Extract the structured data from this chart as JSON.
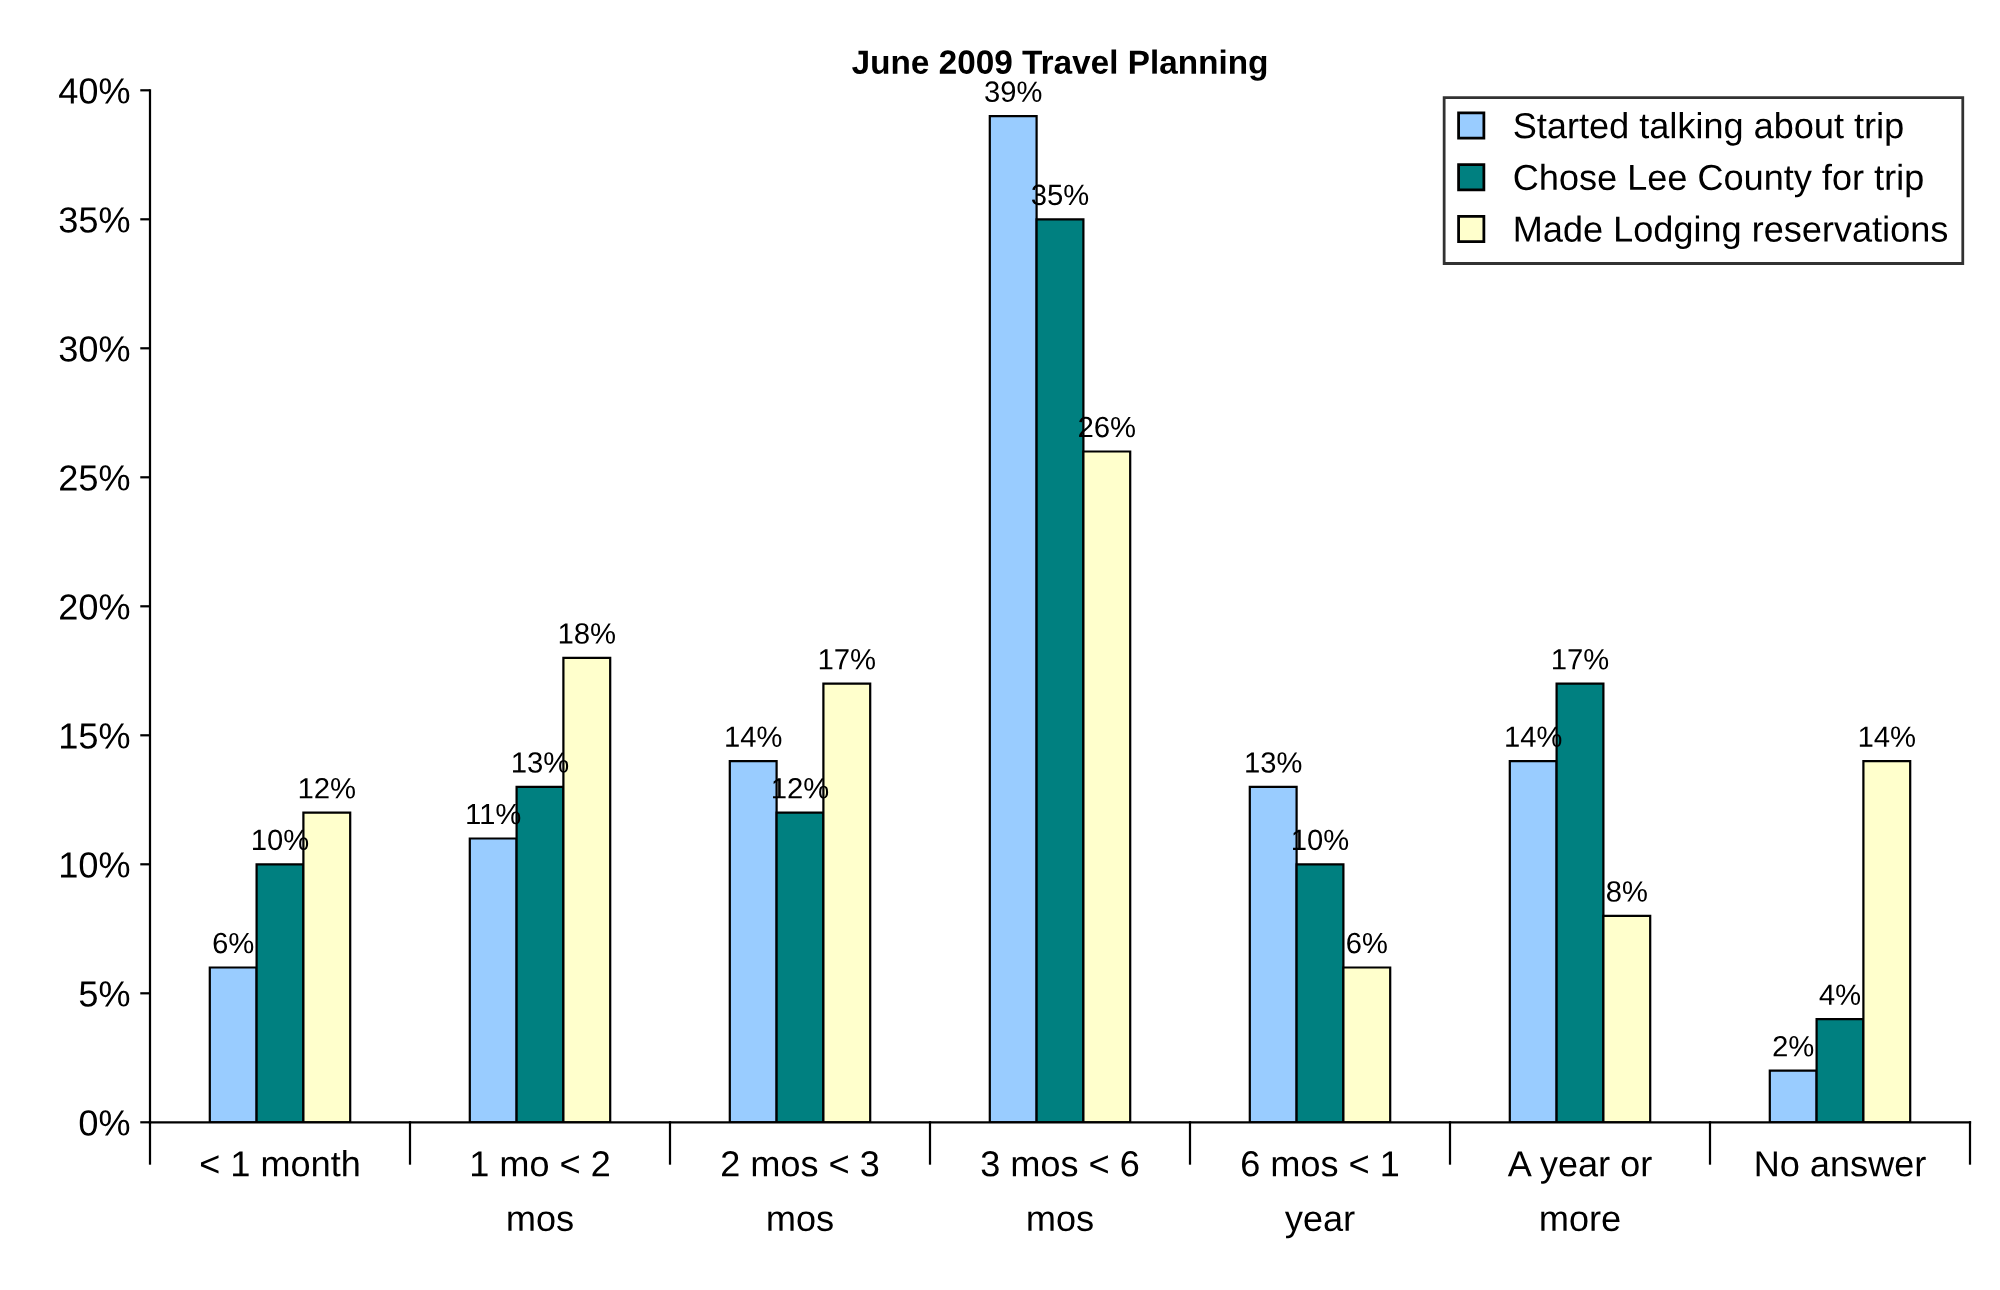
{
  "chart_data": {
    "type": "bar",
    "title": "June 2009 Travel Planning",
    "categories": [
      "< 1 month",
      "1 mo < 2\nmos",
      "2 mos < 3\nmos",
      "3 mos < 6\nmos",
      "6 mos < 1\nyear",
      "A year or\nmore",
      "No answer"
    ],
    "series": [
      {
        "name": "Started talking about trip",
        "color": "#99ccff",
        "values": [
          6,
          11,
          14,
          39,
          13,
          14,
          2
        ],
        "value_labels": [
          "6%",
          "11%",
          "14%",
          "39%",
          "13%",
          "14%",
          "2%"
        ]
      },
      {
        "name": "Chose Lee County for trip",
        "color": "#008080",
        "values": [
          10,
          13,
          12,
          35,
          10,
          17,
          4
        ],
        "value_labels": [
          "10%",
          "13%",
          "12%",
          "35%",
          "10%",
          "17%",
          "4%"
        ]
      },
      {
        "name": "Made Lodging reservations",
        "color": "#ffffcc",
        "values": [
          12,
          18,
          17,
          26,
          6,
          8,
          14
        ],
        "value_labels": [
          "12%",
          "18%",
          "17%",
          "26%",
          "6%",
          "8%",
          "14%"
        ]
      }
    ],
    "ylim": [
      0,
      40
    ],
    "yticks": [
      {
        "value": 0,
        "label": "0%"
      },
      {
        "value": 5,
        "label": "5%"
      },
      {
        "value": 10,
        "label": "10%"
      },
      {
        "value": 15,
        "label": "15%"
      },
      {
        "value": 20,
        "label": "20%"
      },
      {
        "value": 25,
        "label": "25%"
      },
      {
        "value": 30,
        "label": "30%"
      },
      {
        "value": 35,
        "label": "35%"
      },
      {
        "value": 40,
        "label": "40%"
      }
    ],
    "grid": false,
    "legend": "top right"
  }
}
